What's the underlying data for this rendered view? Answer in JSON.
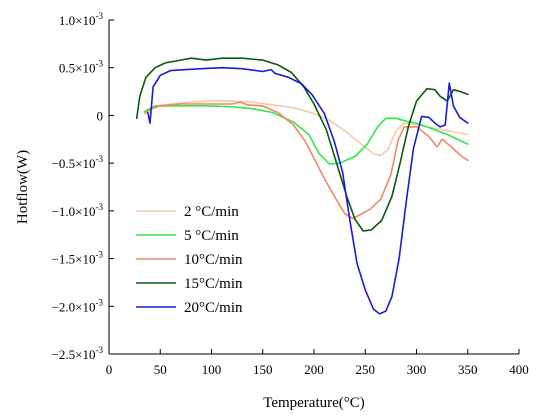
{
  "chart_data": {
    "type": "line",
    "title": "",
    "xlabel": "Temperature(°C)",
    "ylabel": "Hotflow(W)",
    "xlim": [
      0,
      400
    ],
    "ylim": [
      -0.0025,
      0.001
    ],
    "grid": false,
    "legend_position": "lower-left",
    "x_ticks": [
      {
        "value": 0,
        "label": "0"
      },
      {
        "value": 50,
        "label": "50"
      },
      {
        "value": 100,
        "label": "100"
      },
      {
        "value": 150,
        "label": "150"
      },
      {
        "value": 200,
        "label": "200"
      },
      {
        "value": 250,
        "label": "250"
      },
      {
        "value": 300,
        "label": "300"
      },
      {
        "value": 350,
        "label": "350"
      },
      {
        "value": 400,
        "label": "400"
      }
    ],
    "y_ticks": [
      {
        "value": 0.001,
        "mantissa": "1.0×10",
        "exp": "-3"
      },
      {
        "value": 0.0005,
        "mantissa": "0.5×10",
        "exp": "-3"
      },
      {
        "value": 0,
        "mantissa": "0",
        "exp": ""
      },
      {
        "value": -0.0005,
        "mantissa": "−0.5×10",
        "exp": "-3"
      },
      {
        "value": -0.001,
        "mantissa": "−1.0×10",
        "exp": "-3"
      },
      {
        "value": -0.0015,
        "mantissa": "−1.5×10",
        "exp": "-3"
      },
      {
        "value": -0.002,
        "mantissa": "−2.0×10",
        "exp": "-3"
      },
      {
        "value": -0.0025,
        "mantissa": "−2.5×10",
        "exp": "-3"
      }
    ],
    "series": [
      {
        "name": "2 °C/min",
        "color": "#f8c8a8",
        "points": [
          [
            35,
            5e-05
          ],
          [
            45,
            0.0001
          ],
          [
            60,
            0.00012
          ],
          [
            80,
            0.00014
          ],
          [
            100,
            0.00015
          ],
          [
            120,
            0.00015
          ],
          [
            140,
            0.00014
          ],
          [
            160,
            0.00011
          ],
          [
            180,
            8e-05
          ],
          [
            200,
            2e-05
          ],
          [
            215,
            -5e-05
          ],
          [
            230,
            -0.00016
          ],
          [
            245,
            -0.00029
          ],
          [
            258,
            -0.0004
          ],
          [
            265,
            -0.00042
          ],
          [
            272,
            -0.00036
          ],
          [
            280,
            -0.00016
          ],
          [
            288,
            -8e-05
          ],
          [
            300,
            -0.0001
          ],
          [
            320,
            -0.00014
          ],
          [
            340,
            -0.00018
          ],
          [
            350,
            -0.0002
          ]
        ]
      },
      {
        "name": "5 °C/min",
        "color": "#33e84a",
        "points": [
          [
            35,
            4e-05
          ],
          [
            45,
            0.0001
          ],
          [
            60,
            0.0001
          ],
          [
            80,
            0.0001
          ],
          [
            100,
            0.0001
          ],
          [
            120,
            9e-05
          ],
          [
            140,
            7e-05
          ],
          [
            160,
            3e-05
          ],
          [
            180,
            -7e-05
          ],
          [
            195,
            -0.0002
          ],
          [
            205,
            -0.0004
          ],
          [
            215,
            -0.00051
          ],
          [
            225,
            -0.0005
          ],
          [
            240,
            -0.00043
          ],
          [
            252,
            -0.0003
          ],
          [
            262,
            -0.00012
          ],
          [
            270,
            -3e-05
          ],
          [
            280,
            -3e-05
          ],
          [
            290,
            -6e-05
          ],
          [
            300,
            -8e-05
          ],
          [
            315,
            -0.00014
          ],
          [
            330,
            -0.0002
          ],
          [
            350,
            -0.0003
          ]
        ]
      },
      {
        "name": "10°C/min",
        "color": "#f08868",
        "points": [
          [
            35,
            2e-05
          ],
          [
            42,
            7e-05
          ],
          [
            50,
            0.0001
          ],
          [
            60,
            0.00011
          ],
          [
            70,
            0.00012
          ],
          [
            80,
            0.00012
          ],
          [
            100,
            0.00012
          ],
          [
            120,
            0.00012
          ],
          [
            128,
            0.00014
          ],
          [
            135,
            0.00011
          ],
          [
            150,
            0.0001
          ],
          [
            165,
            3e-05
          ],
          [
            180,
            -0.0001
          ],
          [
            192,
            -0.00028
          ],
          [
            200,
            -0.00045
          ],
          [
            210,
            -0.00066
          ],
          [
            220,
            -0.00085
          ],
          [
            230,
            -0.00103
          ],
          [
            238,
            -0.00108
          ],
          [
            245,
            -0.00104
          ],
          [
            255,
            -0.00098
          ],
          [
            265,
            -0.00088
          ],
          [
            275,
            -0.00062
          ],
          [
            282,
            -0.00026
          ],
          [
            288,
            -0.00012
          ],
          [
            300,
            -0.00012
          ],
          [
            312,
            -0.00022
          ],
          [
            320,
            -0.00033
          ],
          [
            325,
            -0.00025
          ],
          [
            333,
            -0.00032
          ],
          [
            343,
            -0.00042
          ],
          [
            350,
            -0.00047
          ]
        ]
      },
      {
        "name": "15°C/min",
        "color": "#0c5a0c",
        "points": [
          [
            27,
            -3e-05
          ],
          [
            30,
            0.0002
          ],
          [
            36,
            0.0004
          ],
          [
            45,
            0.0005
          ],
          [
            55,
            0.00055
          ],
          [
            70,
            0.00058
          ],
          [
            80,
            0.0006
          ],
          [
            95,
            0.00058
          ],
          [
            110,
            0.0006
          ],
          [
            130,
            0.0006
          ],
          [
            150,
            0.00058
          ],
          [
            165,
            0.00053
          ],
          [
            178,
            0.00045
          ],
          [
            190,
            0.0003
          ],
          [
            200,
            0.00012
          ],
          [
            212,
            -0.00015
          ],
          [
            222,
            -0.0005
          ],
          [
            232,
            -0.00085
          ],
          [
            240,
            -0.00109
          ],
          [
            248,
            -0.00121
          ],
          [
            256,
            -0.0012
          ],
          [
            266,
            -0.0011
          ],
          [
            276,
            -0.00085
          ],
          [
            284,
            -0.0005
          ],
          [
            292,
            -0.00012
          ],
          [
            300,
            0.00015
          ],
          [
            310,
            0.00028
          ],
          [
            318,
            0.00027
          ],
          [
            323,
            0.0002
          ],
          [
            330,
            0.00015
          ],
          [
            336,
            0.00027
          ],
          [
            343,
            0.00025
          ],
          [
            350,
            0.00022
          ]
        ]
      },
      {
        "name": "20°C/min",
        "color": "#1a1ad8",
        "points": [
          [
            38,
            3e-05
          ],
          [
            40,
            -8e-05
          ],
          [
            43,
            0.0003
          ],
          [
            50,
            0.00042
          ],
          [
            60,
            0.00047
          ],
          [
            75,
            0.00048
          ],
          [
            90,
            0.00049
          ],
          [
            110,
            0.0005
          ],
          [
            130,
            0.00049
          ],
          [
            150,
            0.00046
          ],
          [
            158,
            0.00048
          ],
          [
            162,
            0.00044
          ],
          [
            175,
            0.0004
          ],
          [
            188,
            0.00033
          ],
          [
            198,
            0.00022
          ],
          [
            210,
            2e-05
          ],
          [
            220,
            -0.00028
          ],
          [
            228,
            -0.0006
          ],
          [
            235,
            -0.0011
          ],
          [
            242,
            -0.00155
          ],
          [
            250,
            -0.00183
          ],
          [
            258,
            -0.00203
          ],
          [
            264,
            -0.00208
          ],
          [
            270,
            -0.00205
          ],
          [
            276,
            -0.0019
          ],
          [
            283,
            -0.0015
          ],
          [
            290,
            -0.0009
          ],
          [
            297,
            -0.00035
          ],
          [
            305,
            -1e-05
          ],
          [
            312,
            -2e-05
          ],
          [
            318,
            -8e-05
          ],
          [
            323,
            -0.00012
          ],
          [
            328,
            -0.0001
          ],
          [
            332,
            0.00034
          ],
          [
            336,
            0.0001
          ],
          [
            342,
            -2e-05
          ],
          [
            350,
            -8e-05
          ]
        ]
      }
    ]
  }
}
